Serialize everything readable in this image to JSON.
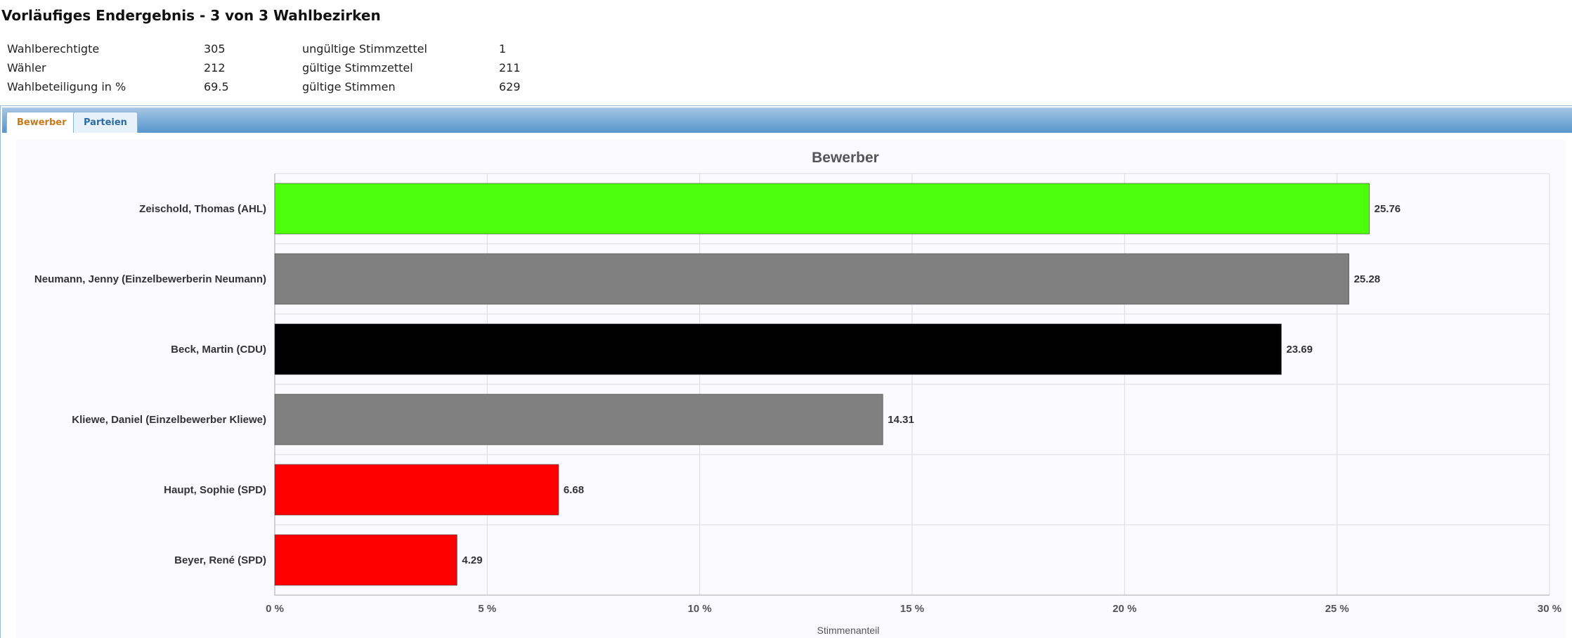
{
  "page": {
    "title": "Vorläufiges Endergebnis - 3 von 3 Wahlbezirken"
  },
  "stats": [
    {
      "label": "Wahlberechtigte",
      "value": "305",
      "label2": "ungültige Stimmzettel",
      "value2": "1"
    },
    {
      "label": "Wähler",
      "value": "212",
      "label2": "gültige Stimmzettel",
      "value2": "211"
    },
    {
      "label": "Wahlbeteiligung in %",
      "value": "69.5",
      "label2": "gültige Stimmen",
      "value2": "629"
    }
  ],
  "tabs": [
    {
      "label": "Bewerber",
      "active": true
    },
    {
      "label": "Parteien",
      "active": false
    }
  ],
  "chart_data": {
    "type": "bar",
    "orientation": "horizontal",
    "title": "Bewerber",
    "xlabel": "Stimmenanteil",
    "ylabel": "",
    "xlim": [
      0,
      30
    ],
    "ticks": [
      "0 %",
      "5 %",
      "10 %",
      "15 %",
      "20 %",
      "25 %",
      "30 %"
    ],
    "grid": true,
    "categories": [
      "Zeischold, Thomas (AHL)",
      "Neumann, Jenny (Einzelbewerberin Neumann)",
      "Beck, Martin (CDU)",
      "Kliewe, Daniel (Einzelbewerber Kliewe)",
      "Haupt, Sophie (SPD)",
      "Beyer, René (SPD)"
    ],
    "values": [
      25.76,
      25.28,
      23.69,
      14.31,
      6.68,
      4.29
    ],
    "value_labels": [
      "25.76",
      "25.28",
      "23.69",
      "14.31",
      "6.68",
      "4.29"
    ],
    "colors": [
      "#4cff0a",
      "#808080",
      "#000000",
      "#808080",
      "#ff0000",
      "#ff0000"
    ]
  }
}
